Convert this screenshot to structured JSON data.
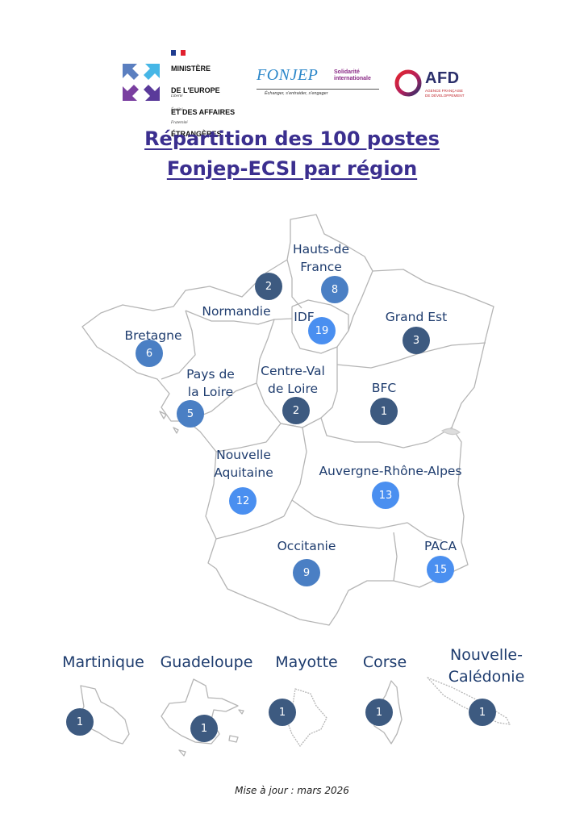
{
  "header": {
    "mae_lines": [
      "MINISTÈRE",
      "DE L'EUROPE",
      "ET DES AFFAIRES",
      "ÉTRANGÈRES"
    ],
    "mae_motto": [
      "Liberté",
      "Égalité",
      "Fraternité"
    ],
    "fonjep_word": "FONJEP",
    "fonjep_sub": "Solidarité\ninternationale",
    "fonjep_tagline": "Échanger, s'entraider, s'engager",
    "afd_word": "AFD",
    "afd_sub": "AGENCE FRANÇAISE\nDE DÉVELOPPEMENT"
  },
  "title": {
    "line1": "Répartition des 100 postes",
    "line2": "Fonjep-ECSI par région"
  },
  "regions": [
    {
      "id": "hauts-de-france",
      "label": "Hauts-de\nFrance",
      "count": "8",
      "tone": "mid"
    },
    {
      "id": "normandie",
      "label": "Normandie",
      "count": "2",
      "tone": "dark"
    },
    {
      "id": "idf",
      "label": "IDF",
      "count": "19",
      "tone": "bright"
    },
    {
      "id": "grand-est",
      "label": "Grand Est",
      "count": "3",
      "tone": "dark"
    },
    {
      "id": "bretagne",
      "label": "Bretagne",
      "count": "6",
      "tone": "mid"
    },
    {
      "id": "pays-de-la-loire",
      "label": "Pays de\nla Loire",
      "count": "5",
      "tone": "mid"
    },
    {
      "id": "centre-val-de-loire",
      "label": "Centre-Val\nde Loire",
      "count": "2",
      "tone": "dark"
    },
    {
      "id": "bfc",
      "label": "BFC",
      "count": "1",
      "tone": "dark"
    },
    {
      "id": "nouvelle-aquitaine",
      "label": "Nouvelle\nAquitaine",
      "count": "12",
      "tone": "bright"
    },
    {
      "id": "auvergne-rhone-alpes",
      "label": "Auvergne-Rhône-Alpes",
      "count": "13",
      "tone": "bright"
    },
    {
      "id": "occitanie",
      "label": "Occitanie",
      "count": "9",
      "tone": "mid"
    },
    {
      "id": "paca",
      "label": "PACA",
      "count": "15",
      "tone": "bright"
    }
  ],
  "overseas": [
    {
      "id": "martinique",
      "label": "Martinique",
      "count": "1"
    },
    {
      "id": "guadeloupe",
      "label": "Guadeloupe",
      "count": "1"
    },
    {
      "id": "mayotte",
      "label": "Mayotte",
      "count": "1"
    },
    {
      "id": "corse",
      "label": "Corse",
      "count": "1"
    },
    {
      "id": "nouvelle-caledonie",
      "label": "Nouvelle-\nCalédonie",
      "count": "1"
    }
  ],
  "colors": {
    "title": "#3b2f8f",
    "labels": "#1e3c6e",
    "badge_dark": "#3d5a80",
    "badge_mid": "#4a7fc4",
    "badge_bright": "#4a8ff0",
    "map_stroke": "#b5b5b5"
  },
  "footer": "Mise à jour : mars 2026"
}
